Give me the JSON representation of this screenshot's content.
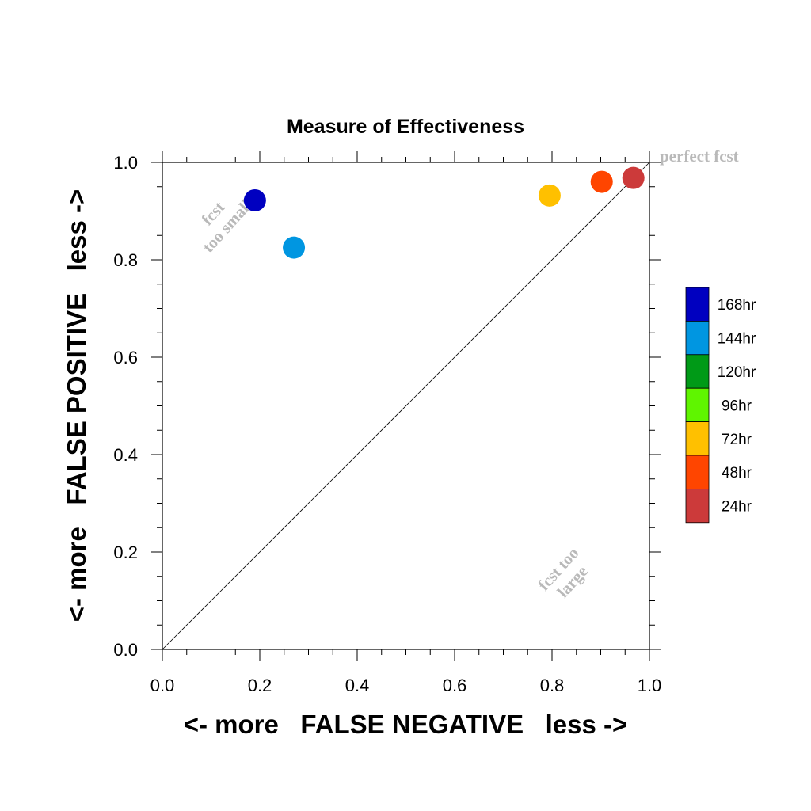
{
  "chart_data": {
    "type": "scatter",
    "title": "Measure of Effectiveness",
    "xlabel": "<- more   FALSE NEGATIVE   less ->",
    "ylabel": "<- more   FALSE POSITIVE   less ->",
    "xlim": [
      0.0,
      1.0
    ],
    "ylim": [
      0.0,
      1.0
    ],
    "xticks": [
      "0.0",
      "0.2",
      "0.4",
      "0.6",
      "0.8",
      "1.0"
    ],
    "yticks": [
      "0.0",
      "0.2",
      "0.4",
      "0.6",
      "0.8",
      "1.0"
    ],
    "grid": false,
    "diagonal_line": true,
    "points": [
      {
        "series": "168hr",
        "x": 0.19,
        "y": 0.922,
        "color": "#0000c0"
      },
      {
        "series": "144hr",
        "x": 0.27,
        "y": 0.825,
        "color": "#0096e1"
      },
      {
        "series": "72hr",
        "x": 0.795,
        "y": 0.932,
        "color": "#ffc000"
      },
      {
        "series": "48hr",
        "x": 0.902,
        "y": 0.96,
        "color": "#ff4500"
      },
      {
        "series": "24hr",
        "x": 0.967,
        "y": 0.968,
        "color": "#cc3a3a"
      }
    ],
    "legend_placement": "right",
    "legend": [
      {
        "label": "168hr",
        "color": "#0000c0"
      },
      {
        "label": "144hr",
        "color": "#0096e1"
      },
      {
        "label": "120hr",
        "color": "#009a17"
      },
      {
        "label": "96hr",
        "color": "#5ff500"
      },
      {
        "label": "72hr",
        "color": "#ffc000"
      },
      {
        "label": "48hr",
        "color": "#ff4500"
      },
      {
        "label": "24hr",
        "color": "#cc3a3a"
      }
    ],
    "annotations": {
      "perfect": "perfect fcst",
      "small_line1": "fcst",
      "small_line2": "too small",
      "large_line1": "fcst too",
      "large_line2": "large"
    }
  }
}
